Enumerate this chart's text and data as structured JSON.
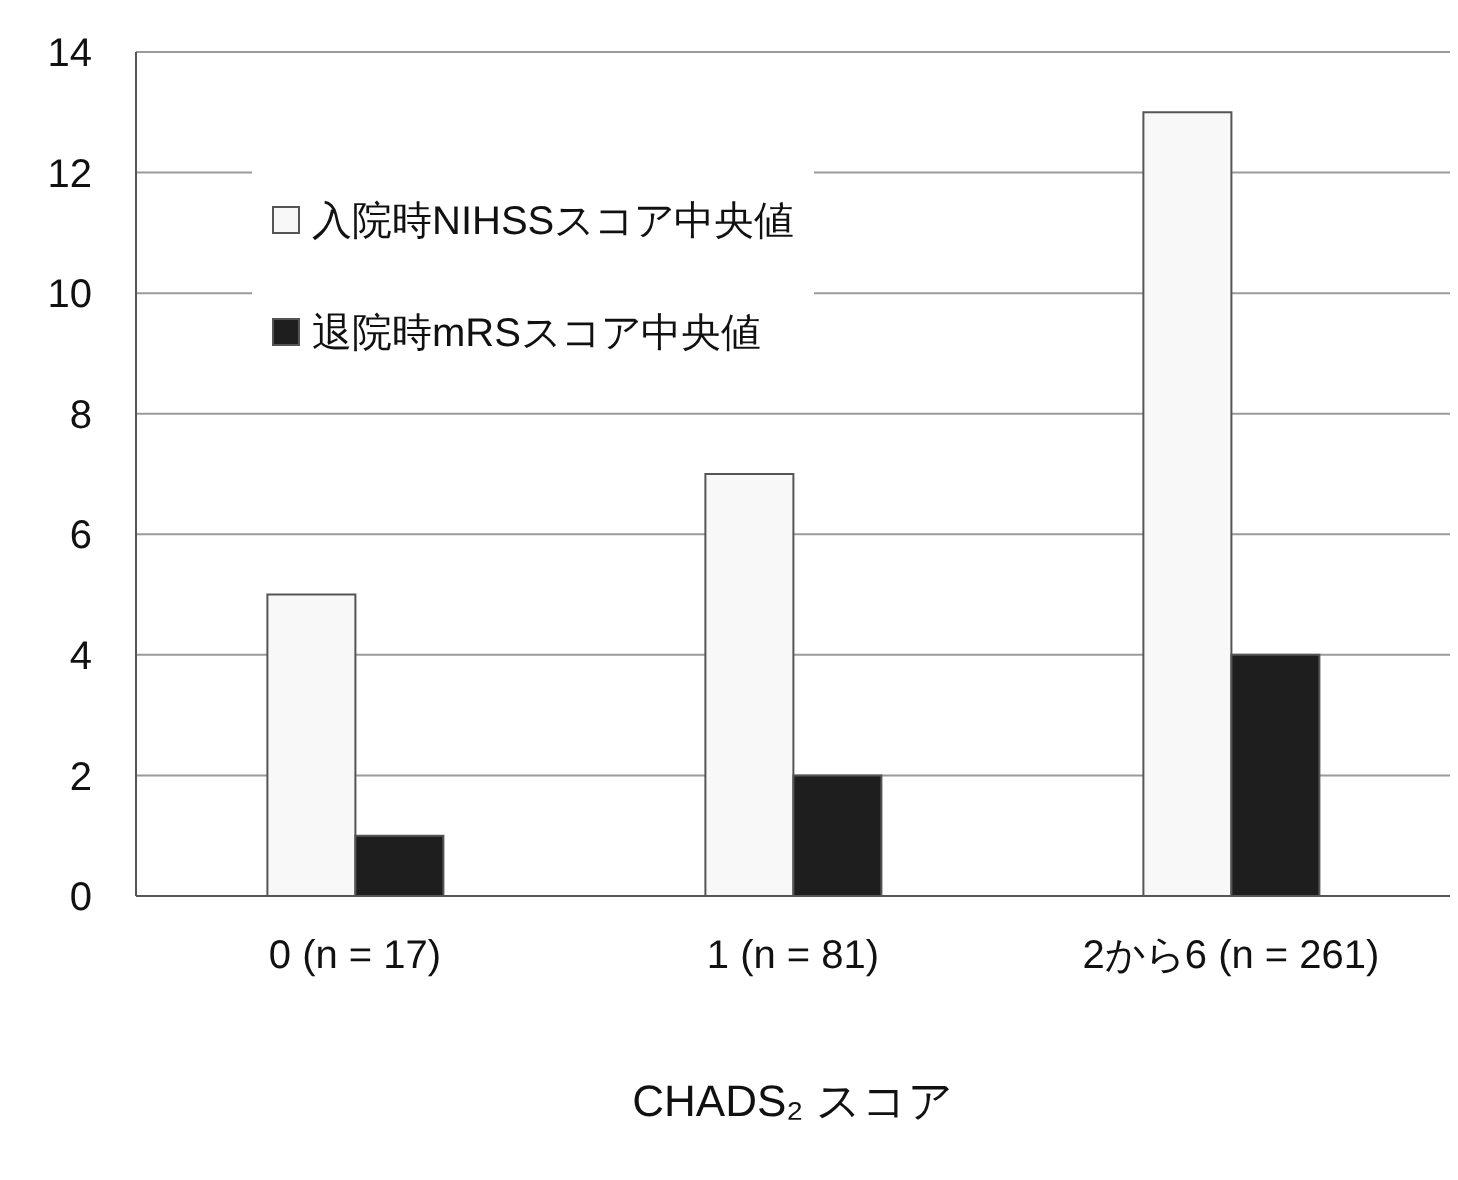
{
  "chart_data": {
    "type": "bar",
    "xlabel": "CHADS₂ スコア",
    "categories": [
      "0 (n = 17)",
      "1 (n = 81)",
      "2から6 (n = 261)"
    ],
    "series": [
      {
        "name": "入院時NIHSSスコア中央値",
        "color": "#f8f8f8",
        "values": [
          5,
          7,
          13
        ]
      },
      {
        "name": "退院時mRSスコア中央値",
        "color": "#1e1e1e",
        "values": [
          1,
          2,
          4
        ]
      }
    ],
    "ylim": [
      0,
      14
    ],
    "yticks": [
      0,
      2,
      4,
      6,
      8,
      10,
      12,
      14
    ],
    "grid": "y",
    "legend": "top left"
  }
}
